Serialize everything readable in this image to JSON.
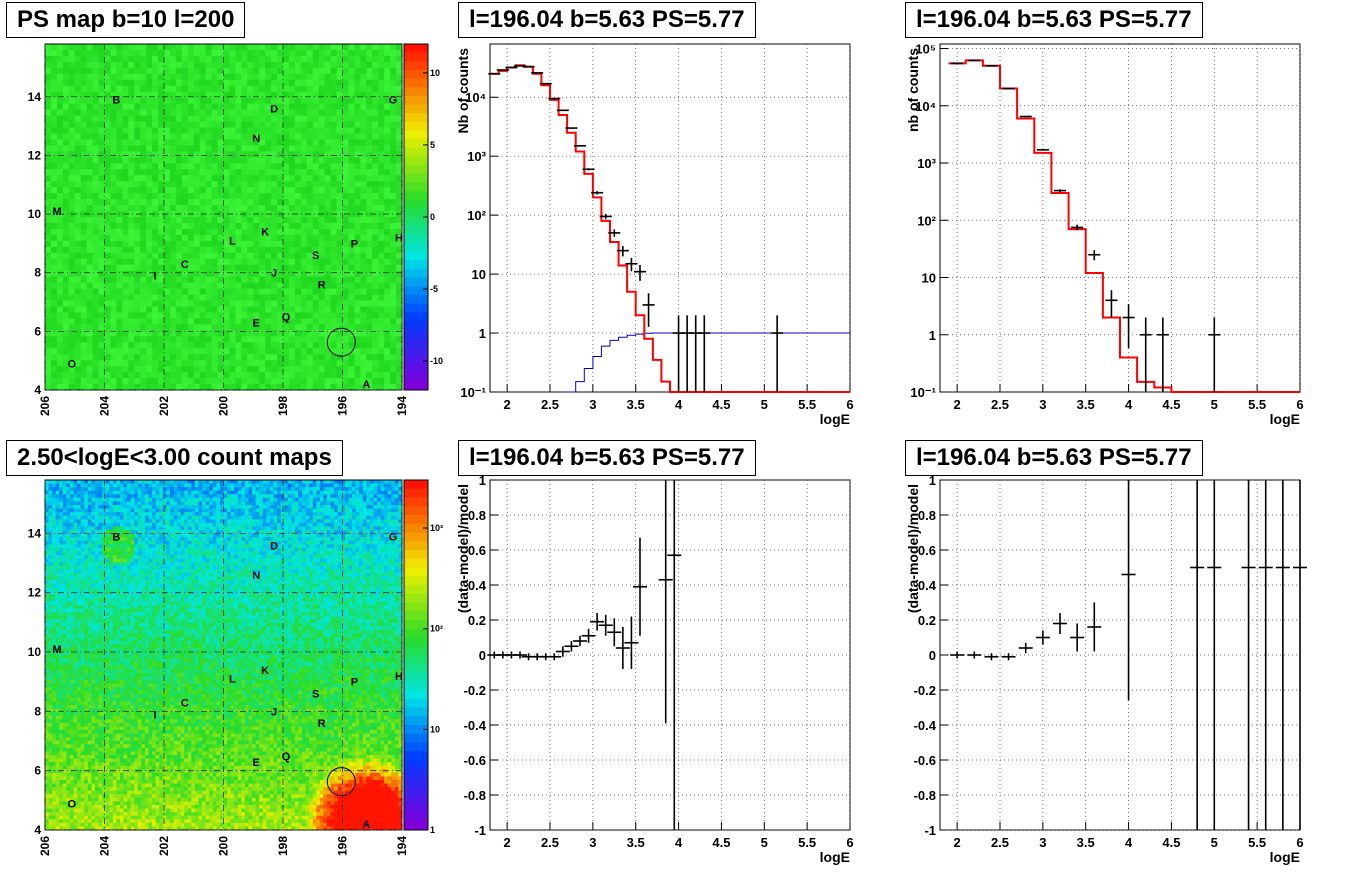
{
  "panels": {
    "ps_map_title": "PS map b=10 l=200",
    "count_map_title": "2.50<logE<3.00 count maps",
    "spectrum1_title": "l=196.04 b=5.63 PS=5.77",
    "spectrum2_title": "l=196.04 b=5.63 PS=5.77",
    "resid1_title": "l=196.04 b=5.63 PS=5.77",
    "resid2_title": "l=196.04 b=5.63 PS=5.77"
  },
  "colors": {
    "map_green": "#2bde2b",
    "data_black": "#000000",
    "model_red": "#ff0000",
    "model_blue": "#0000cc",
    "grid": "#000000"
  },
  "chart_data": [
    {
      "id": "ps_map",
      "type": "heatmap",
      "title": "PS map b=10 l=200",
      "x_ticks": [
        "206",
        "204",
        "202",
        "200",
        "198",
        "196",
        "194"
      ],
      "xlim": [
        206,
        194
      ],
      "y_ticks": [
        "4",
        "6",
        "8",
        "10",
        "12",
        "14"
      ],
      "ylim": [
        4,
        15.8
      ],
      "colorbar_ticks": [
        "10",
        "5",
        "0",
        "-5",
        "-10"
      ],
      "colorbar_range": [
        -12,
        12
      ],
      "sources": [
        {
          "label": "B",
          "l": 203.6,
          "b": 13.9
        },
        {
          "label": "D",
          "l": 198.3,
          "b": 13.6
        },
        {
          "label": "G",
          "l": 194.3,
          "b": 13.9
        },
        {
          "label": "N",
          "l": 198.9,
          "b": 12.6
        },
        {
          "label": "M",
          "l": 205.6,
          "b": 10.1
        },
        {
          "label": "K",
          "l": 198.6,
          "b": 9.4
        },
        {
          "label": "L",
          "l": 199.7,
          "b": 9.1
        },
        {
          "label": "P",
          "l": 195.6,
          "b": 9.0
        },
        {
          "label": "H",
          "l": 194.1,
          "b": 9.2
        },
        {
          "label": "S",
          "l": 196.9,
          "b": 8.6
        },
        {
          "label": "C",
          "l": 201.3,
          "b": 8.3
        },
        {
          "label": "J",
          "l": 198.3,
          "b": 8.0
        },
        {
          "label": "I",
          "l": 202.3,
          "b": 7.9
        },
        {
          "label": "R",
          "l": 196.7,
          "b": 7.6
        },
        {
          "label": "Q",
          "l": 197.9,
          "b": 6.5
        },
        {
          "label": "E",
          "l": 198.9,
          "b": 6.3
        },
        {
          "label": "O",
          "l": 205.1,
          "b": 4.9
        },
        {
          "label": "A",
          "l": 195.2,
          "b": 4.2
        }
      ],
      "circle": {
        "l": 196.04,
        "b": 5.63
      }
    },
    {
      "id": "count_map",
      "type": "heatmap",
      "title": "2.50<logE<3.00 count maps",
      "x_ticks": [
        "206",
        "204",
        "202",
        "200",
        "198",
        "196",
        "194"
      ],
      "xlim": [
        206,
        194
      ],
      "y_ticks": [
        "4",
        "6",
        "8",
        "10",
        "12",
        "14"
      ],
      "ylim": [
        4,
        15.8
      ],
      "colorbar_ticks": [
        "10³",
        "10²",
        "10",
        "1"
      ],
      "colorbar_range": [
        1,
        3000
      ],
      "colorbar_log": true,
      "sources": [
        {
          "label": "B",
          "l": 203.6,
          "b": 13.9
        },
        {
          "label": "D",
          "l": 198.3,
          "b": 13.6
        },
        {
          "label": "G",
          "l": 194.3,
          "b": 13.9
        },
        {
          "label": "N",
          "l": 198.9,
          "b": 12.6
        },
        {
          "label": "M",
          "l": 205.6,
          "b": 10.1
        },
        {
          "label": "K",
          "l": 198.6,
          "b": 9.4
        },
        {
          "label": "L",
          "l": 199.7,
          "b": 9.1
        },
        {
          "label": "P",
          "l": 195.6,
          "b": 9.0
        },
        {
          "label": "H",
          "l": 194.1,
          "b": 9.2
        },
        {
          "label": "S",
          "l": 196.9,
          "b": 8.6
        },
        {
          "label": "C",
          "l": 201.3,
          "b": 8.3
        },
        {
          "label": "J",
          "l": 198.3,
          "b": 8.0
        },
        {
          "label": "I",
          "l": 202.3,
          "b": 7.9
        },
        {
          "label": "R",
          "l": 196.7,
          "b": 7.6
        },
        {
          "label": "Q",
          "l": 197.9,
          "b": 6.5
        },
        {
          "label": "E",
          "l": 198.9,
          "b": 6.3
        },
        {
          "label": "O",
          "l": 205.1,
          "b": 4.9
        },
        {
          "label": "A",
          "l": 195.2,
          "b": 4.2
        }
      ],
      "circle": {
        "l": 196.04,
        "b": 5.63
      }
    },
    {
      "id": "spectrum1",
      "type": "line",
      "title": "l=196.04 b=5.63 PS=5.77",
      "xlabel": "logE",
      "ylabel": "Nb of counts",
      "xlim": [
        1.8,
        6
      ],
      "ylim": [
        0.1,
        80000
      ],
      "log_y": true,
      "grid": true,
      "x_ticks": [
        "2",
        "2.5",
        "3",
        "3.5",
        "4",
        "4.5",
        "5",
        "5.5",
        "6"
      ],
      "y_ticks": [
        "10⁻¹",
        "1",
        "10",
        "10²",
        "10³",
        "10⁴"
      ],
      "model_red_edges": [
        1.8,
        1.9,
        2.0,
        2.1,
        2.2,
        2.3,
        2.4,
        2.5,
        2.6,
        2.7,
        2.8,
        2.9,
        3.0,
        3.1,
        3.2,
        3.3,
        3.4,
        3.5,
        3.6,
        3.7,
        3.8,
        3.9,
        4.0,
        4.1,
        4.2,
        4.3,
        4.4,
        4.5,
        6.0
      ],
      "model_red_values": [
        25000,
        28000,
        32000,
        35000,
        33000,
        25000,
        16000,
        9000,
        5000,
        2500,
        1200,
        500,
        200,
        80,
        35,
        14,
        5,
        2,
        0.8,
        0.35,
        0.15,
        0.1,
        0.1,
        0.1,
        0.1,
        0.1,
        0.1,
        0.1
      ],
      "model_blue_edges": [
        2.7,
        2.8,
        2.9,
        3.0,
        3.1,
        3.2,
        3.3,
        3.4,
        3.5,
        3.6,
        3.7,
        3.8,
        3.9,
        4.0,
        6.0
      ],
      "model_blue_values": [
        0.1,
        0.15,
        0.25,
        0.4,
        0.6,
        0.75,
        0.85,
        0.92,
        0.96,
        0.99,
        1.0,
        1.0,
        1.0,
        1.0
      ],
      "points": [
        {
          "x": 1.85,
          "y": 25000
        },
        {
          "x": 1.95,
          "y": 29000
        },
        {
          "x": 2.05,
          "y": 32000
        },
        {
          "x": 2.15,
          "y": 34000
        },
        {
          "x": 2.25,
          "y": 33000
        },
        {
          "x": 2.35,
          "y": 26000
        },
        {
          "x": 2.45,
          "y": 17000
        },
        {
          "x": 2.55,
          "y": 9500
        },
        {
          "x": 2.65,
          "y": 6000
        },
        {
          "x": 2.75,
          "y": 3000
        },
        {
          "x": 2.85,
          "y": 1500
        },
        {
          "x": 2.95,
          "y": 600
        },
        {
          "x": 3.05,
          "y": 240
        },
        {
          "x": 3.15,
          "y": 95
        },
        {
          "x": 3.25,
          "y": 50
        },
        {
          "x": 3.35,
          "y": 25
        },
        {
          "x": 3.45,
          "y": 15
        },
        {
          "x": 3.55,
          "y": 11
        },
        {
          "x": 3.65,
          "y": 3
        },
        {
          "x": 4.0,
          "y": 1
        },
        {
          "x": 4.1,
          "y": 1
        },
        {
          "x": 4.2,
          "y": 1
        },
        {
          "x": 4.3,
          "y": 1
        },
        {
          "x": 5.15,
          "y": 1
        }
      ]
    },
    {
      "id": "spectrum2",
      "type": "line",
      "title": "l=196.04 b=5.63 PS=5.77",
      "xlabel": "logE",
      "ylabel": "nb of counts",
      "xlim": [
        1.8,
        6
      ],
      "ylim": [
        0.1,
        120000
      ],
      "log_y": true,
      "grid": true,
      "x_ticks": [
        "2",
        "2.5",
        "3",
        "3.5",
        "4",
        "4.5",
        "5",
        "5.5",
        "6"
      ],
      "y_ticks": [
        "10⁻¹",
        "1",
        "10",
        "10²",
        "10³",
        "10⁴",
        "10⁵"
      ],
      "model_red_edges": [
        1.9,
        2.1,
        2.3,
        2.5,
        2.7,
        2.9,
        3.1,
        3.3,
        3.5,
        3.7,
        3.9,
        4.1,
        4.3,
        4.5,
        6.0
      ],
      "model_red_values": [
        55000,
        62000,
        50000,
        20000,
        6000,
        1500,
        300,
        70,
        12,
        2,
        0.4,
        0.15,
        0.12,
        0.1
      ],
      "points": [
        {
          "x": 2.0,
          "y": 55000
        },
        {
          "x": 2.2,
          "y": 62000
        },
        {
          "x": 2.4,
          "y": 50000
        },
        {
          "x": 2.6,
          "y": 20000
        },
        {
          "x": 2.8,
          "y": 6500
        },
        {
          "x": 3.0,
          "y": 1700
        },
        {
          "x": 3.2,
          "y": 330
        },
        {
          "x": 3.4,
          "y": 75
        },
        {
          "x": 3.6,
          "y": 25
        },
        {
          "x": 3.8,
          "y": 4
        },
        {
          "x": 4.0,
          "y": 2
        },
        {
          "x": 4.2,
          "y": 1
        },
        {
          "x": 4.4,
          "y": 1
        },
        {
          "x": 5.0,
          "y": 1
        }
      ]
    },
    {
      "id": "resid1",
      "type": "scatter",
      "title": "l=196.04 b=5.63 PS=5.77",
      "xlabel": "logE",
      "ylabel": "(data-model)/model",
      "xlim": [
        1.8,
        6
      ],
      "ylim": [
        -1,
        1
      ],
      "grid": true,
      "x_ticks": [
        "2",
        "2.5",
        "3",
        "3.5",
        "4",
        "4.5",
        "5",
        "5.5",
        "6"
      ],
      "y_ticks": [
        "-1",
        "-0.8",
        "-0.6",
        "-0.4",
        "-0.2",
        "0",
        "0.2",
        "0.4",
        "0.6",
        "0.8",
        "1"
      ],
      "points": [
        {
          "x": 1.85,
          "y": 0.0,
          "err": 0.02
        },
        {
          "x": 1.95,
          "y": 0.0,
          "err": 0.02
        },
        {
          "x": 2.05,
          "y": 0.0,
          "err": 0.02
        },
        {
          "x": 2.15,
          "y": 0.0,
          "err": 0.02
        },
        {
          "x": 2.25,
          "y": -0.01,
          "err": 0.02
        },
        {
          "x": 2.35,
          "y": -0.01,
          "err": 0.02
        },
        {
          "x": 2.45,
          "y": -0.01,
          "err": 0.02
        },
        {
          "x": 2.55,
          "y": -0.01,
          "err": 0.02
        },
        {
          "x": 2.65,
          "y": 0.02,
          "err": 0.03
        },
        {
          "x": 2.75,
          "y": 0.05,
          "err": 0.03
        },
        {
          "x": 2.85,
          "y": 0.08,
          "err": 0.03
        },
        {
          "x": 2.95,
          "y": 0.11,
          "err": 0.04
        },
        {
          "x": 3.05,
          "y": 0.19,
          "err": 0.05
        },
        {
          "x": 3.15,
          "y": 0.17,
          "err": 0.06
        },
        {
          "x": 3.25,
          "y": 0.13,
          "err": 0.08
        },
        {
          "x": 3.35,
          "y": 0.04,
          "err": 0.12
        },
        {
          "x": 3.45,
          "y": 0.07,
          "err": 0.15
        },
        {
          "x": 3.55,
          "y": 0.39,
          "err": 0.28
        },
        {
          "x": 3.85,
          "y": 0.43,
          "err": 0.82
        },
        {
          "x": 3.95,
          "y": 0.57,
          "err": 1.6
        }
      ]
    },
    {
      "id": "resid2",
      "type": "scatter",
      "title": "l=196.04 b=5.63 PS=5.77",
      "xlabel": "logE",
      "ylabel": "(data-model)/model",
      "xlim": [
        1.8,
        6
      ],
      "ylim": [
        -1,
        1
      ],
      "grid": true,
      "x_ticks": [
        "2",
        "2.5",
        "3",
        "3.5",
        "4",
        "4.5",
        "5",
        "5.5",
        "6"
      ],
      "y_ticks": [
        "-1",
        "-0.8",
        "-0.6",
        "-0.4",
        "-0.2",
        "0",
        "0.2",
        "0.4",
        "0.6",
        "0.8",
        "1"
      ],
      "points": [
        {
          "x": 2.0,
          "y": 0.0,
          "err": 0.02
        },
        {
          "x": 2.2,
          "y": 0.0,
          "err": 0.02
        },
        {
          "x": 2.4,
          "y": -0.01,
          "err": 0.02
        },
        {
          "x": 2.6,
          "y": -0.01,
          "err": 0.02
        },
        {
          "x": 2.8,
          "y": 0.04,
          "err": 0.03
        },
        {
          "x": 3.0,
          "y": 0.1,
          "err": 0.04
        },
        {
          "x": 3.2,
          "y": 0.18,
          "err": 0.06
        },
        {
          "x": 3.4,
          "y": 0.1,
          "err": 0.08
        },
        {
          "x": 3.6,
          "y": 0.16,
          "err": 0.14
        },
        {
          "x": 4.0,
          "y": 0.46,
          "err": 0.72
        },
        {
          "x": 4.8,
          "y": 0.5,
          "err": 3
        },
        {
          "x": 5.0,
          "y": 0.5,
          "err": 3
        },
        {
          "x": 5.4,
          "y": 0.5,
          "err": 3
        },
        {
          "x": 5.6,
          "y": 0.5,
          "err": 3
        },
        {
          "x": 5.8,
          "y": 0.5,
          "err": 3
        },
        {
          "x": 6.0,
          "y": 0.5,
          "err": 3
        }
      ]
    }
  ]
}
